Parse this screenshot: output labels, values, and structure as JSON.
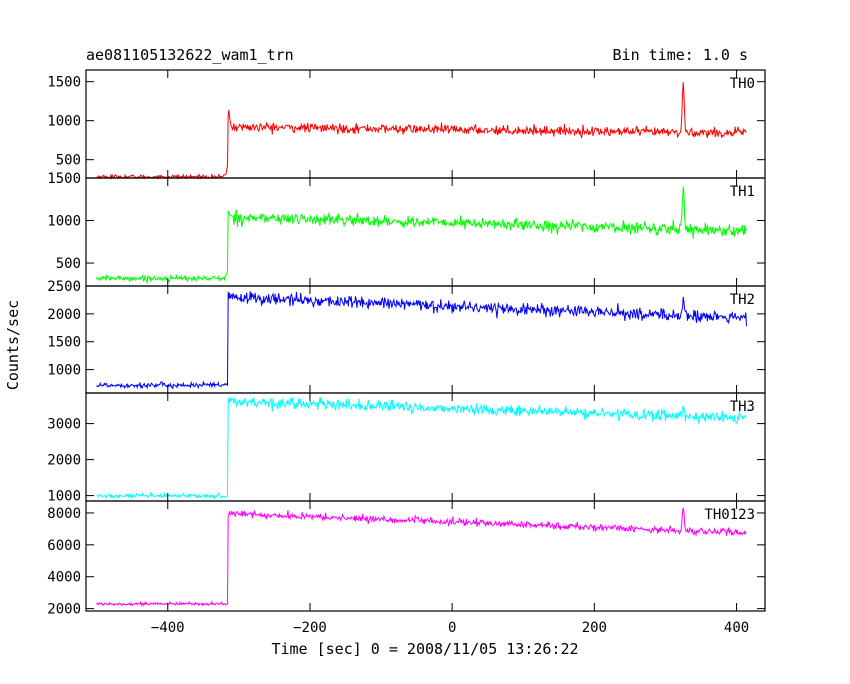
{
  "header": {
    "obs_id": "ae081105132622_wam1_trn",
    "bin_time": "Bin time: 1.0 s"
  },
  "chart_data": {
    "type": "line",
    "title": "ae081105132622_wam1_trn",
    "subtitle": "Bin time: 1.0 s",
    "xlabel": "Time [sec] 0 = 2008/11/05 13:26:22",
    "ylabel": "Counts/sec",
    "xlim": [
      -515,
      440
    ],
    "x_ticks": [
      -400,
      -200,
      0,
      200,
      400
    ],
    "x_tick_labels": [
      "−400",
      "−200",
      "0",
      "200",
      "400"
    ],
    "grid": false,
    "panels": [
      {
        "name": "TH0",
        "color": "#ff0000",
        "ylim": [
          265,
          1650
        ],
        "y_ticks": [
          500,
          1000,
          1500
        ],
        "y_tick_labels": [
          "500",
          "1000",
          "1500"
        ],
        "x_start": -500,
        "x_step": 1,
        "x_end": 414,
        "pre_level": 280,
        "post_start": 920,
        "post_end": 840,
        "noise_pre": 14,
        "noise_post": 30,
        "peaks": [
          {
            "x": 325,
            "height": 650,
            "width": 1.3
          },
          {
            "x": -315,
            "height": 180,
            "width": 2.0
          }
        ]
      },
      {
        "name": "TH1",
        "color": "#00ff00",
        "ylim": [
          230,
          1500
        ],
        "y_ticks": [
          500,
          1000,
          1500
        ],
        "y_tick_labels": [
          "500",
          "1000",
          "1500"
        ],
        "x_start": -500,
        "x_step": 1,
        "x_end": 414,
        "pre_level": 320,
        "post_start": 1040,
        "post_end": 880,
        "noise_pre": 16,
        "noise_post": 34,
        "peaks": [
          {
            "x": 325,
            "height": 540,
            "width": 1.3
          },
          {
            "x": -315,
            "height": 80,
            "width": 2.0
          }
        ]
      },
      {
        "name": "TH2",
        "color": "#0000ff",
        "ylim": [
          580,
          2500
        ],
        "y_ticks": [
          1000,
          1500,
          2000,
          2500
        ],
        "y_tick_labels": [
          "1000",
          "1500",
          "2000",
          "2500"
        ],
        "x_start": -500,
        "x_step": 1,
        "x_end": 414,
        "pre_level": 720,
        "post_start": 2300,
        "post_end": 1920,
        "noise_pre": 25,
        "noise_post": 55,
        "peaks": [
          {
            "x": 325,
            "height": 260,
            "width": 1.5
          }
        ]
      },
      {
        "name": "TH3",
        "color": "#00ffff",
        "ylim": [
          850,
          3850
        ],
        "y_ticks": [
          1000,
          2000,
          3000
        ],
        "y_tick_labels": [
          "1000",
          "2000",
          "3000"
        ],
        "x_start": -500,
        "x_step": 1,
        "x_end": 414,
        "pre_level": 990,
        "post_start": 3620,
        "post_end": 3150,
        "noise_pre": 30,
        "noise_post": 75,
        "peaks": [
          {
            "x": 325,
            "height": 260,
            "width": 1.5
          }
        ]
      },
      {
        "name": "TH0123",
        "color": "#ff00ff",
        "ylim": [
          1850,
          8750
        ],
        "y_ticks": [
          2000,
          4000,
          6000,
          8000
        ],
        "y_tick_labels": [
          "2000",
          "4000",
          "6000",
          "8000"
        ],
        "x_start": -500,
        "x_step": 1,
        "x_end": 414,
        "pre_level": 2300,
        "post_start": 7950,
        "post_end": 6750,
        "noise_pre": 45,
        "noise_post": 110,
        "peaks": [
          {
            "x": 325,
            "height": 1500,
            "width": 1.3
          }
        ]
      }
    ]
  }
}
